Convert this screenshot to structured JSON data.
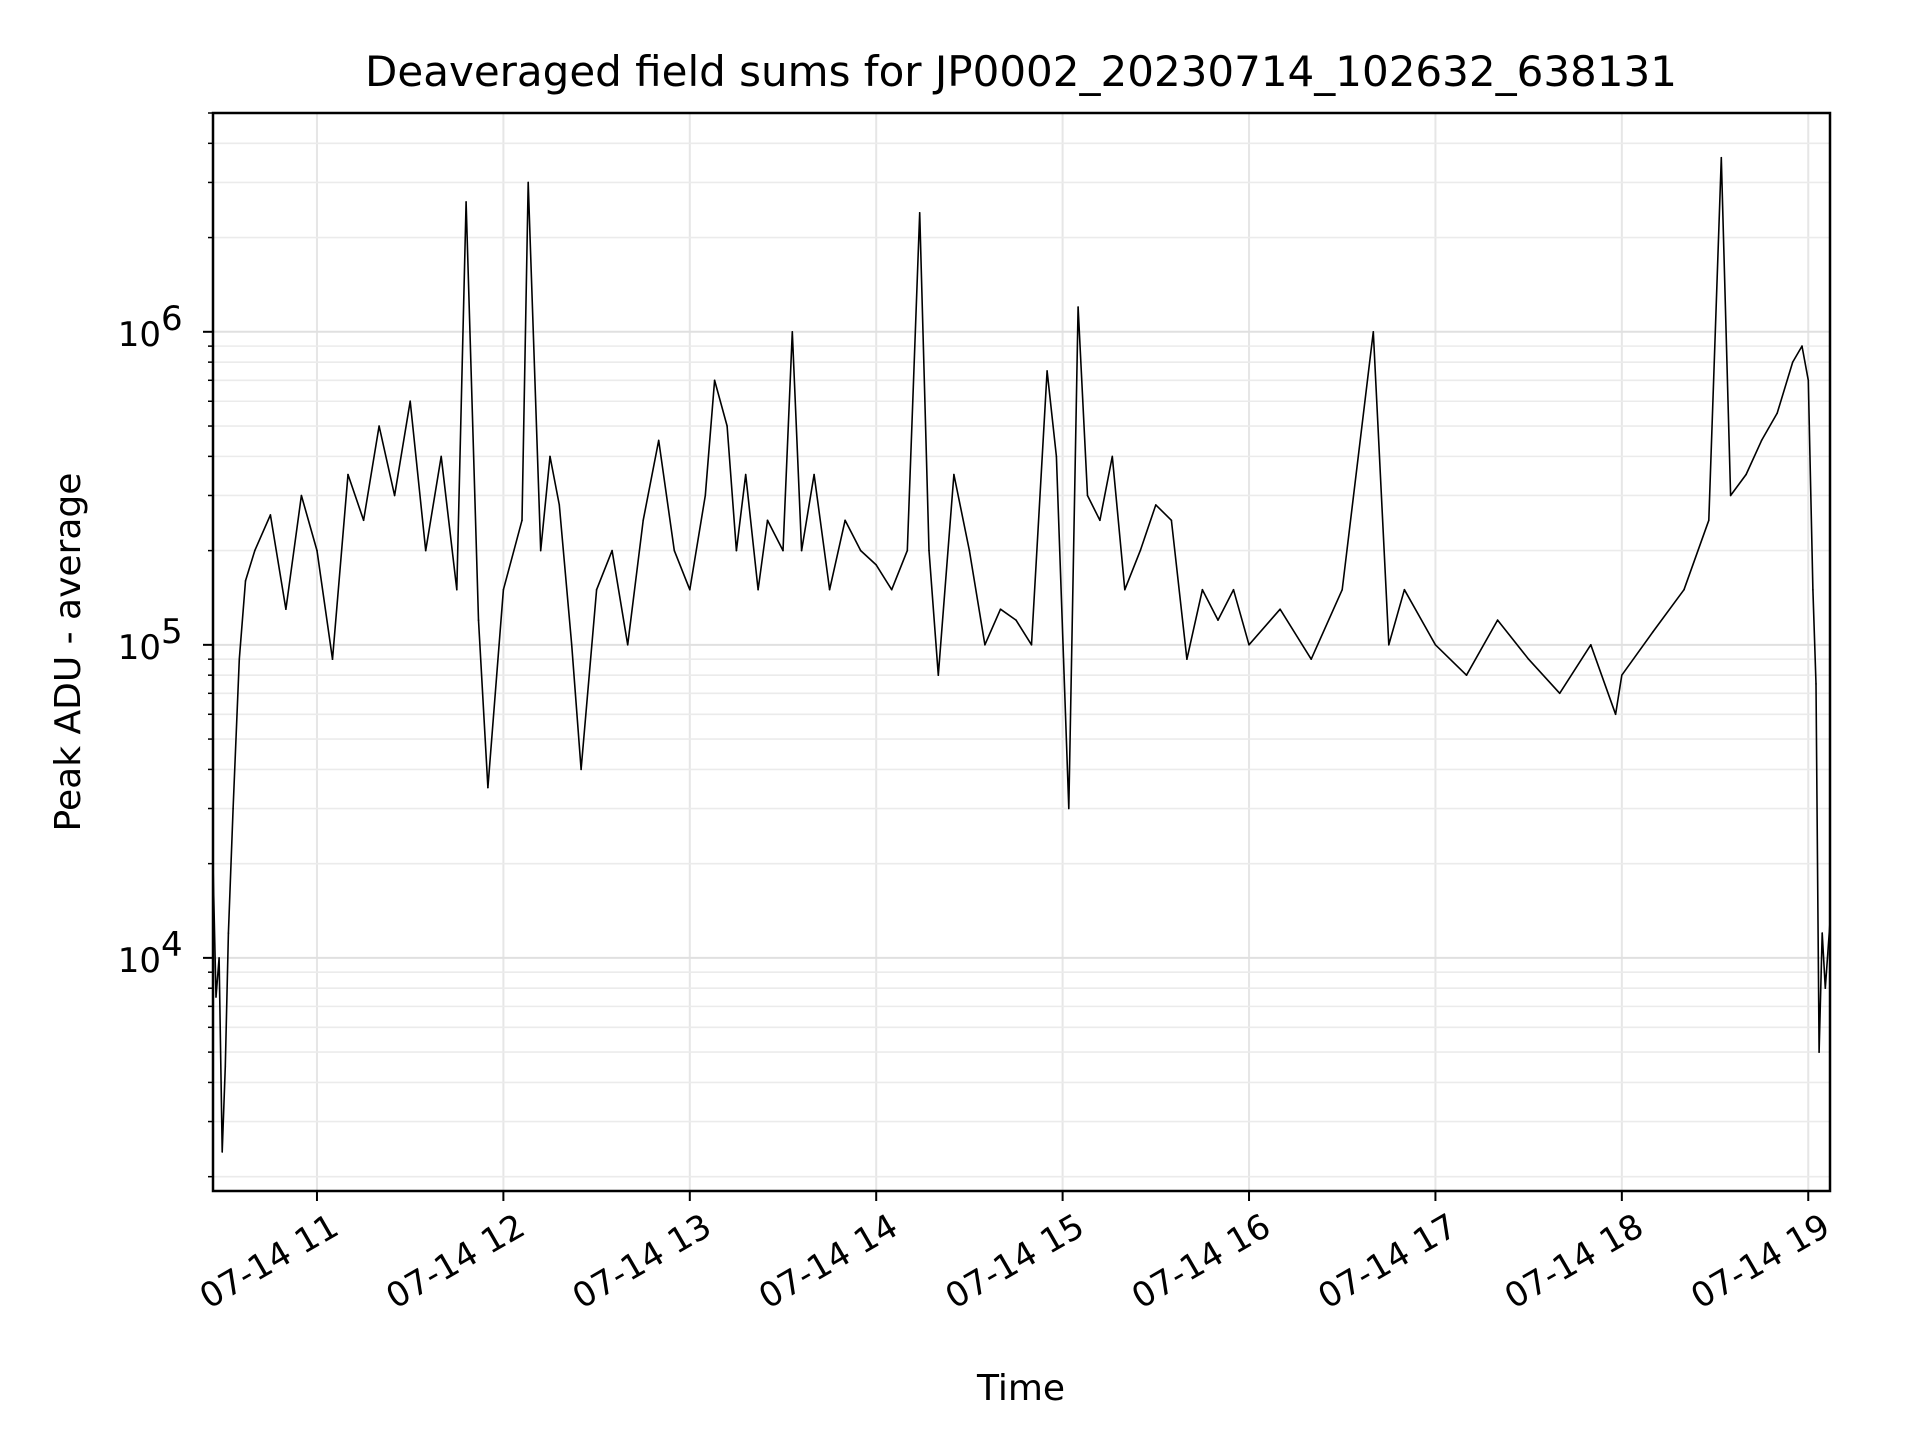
{
  "chart_data": {
    "type": "line",
    "title": "Deaveraged field sums for JP0002_20230714_102632_638131",
    "xlabel": "Time",
    "ylabel": "Peak ADU - average",
    "yscale": "log",
    "ylim": [
      1800,
      5000000
    ],
    "xlim": [
      "2023-07-14T10:26:32",
      "2023-07-14T19:07:00"
    ],
    "grid": true,
    "x_ticks": [
      {
        "t": "2023-07-14T11:00",
        "label": "07-14 11"
      },
      {
        "t": "2023-07-14T12:00",
        "label": "07-14 12"
      },
      {
        "t": "2023-07-14T13:00",
        "label": "07-14 13"
      },
      {
        "t": "2023-07-14T14:00",
        "label": "07-14 14"
      },
      {
        "t": "2023-07-14T15:00",
        "label": "07-14 15"
      },
      {
        "t": "2023-07-14T16:00",
        "label": "07-14 16"
      },
      {
        "t": "2023-07-14T17:00",
        "label": "07-14 17"
      },
      {
        "t": "2023-07-14T18:00",
        "label": "07-14 18"
      },
      {
        "t": "2023-07-14T19:00",
        "label": "07-14 19"
      }
    ],
    "y_ticks": [
      {
        "value": 10000,
        "base": "10",
        "exp": "4"
      },
      {
        "value": 100000,
        "base": "10",
        "exp": "5"
      },
      {
        "value": 1000000,
        "base": "10",
        "exp": "6"
      }
    ],
    "series": [
      {
        "color": "#000000",
        "points": [
          [
            "2023-07-14T10:26:32",
            20000
          ],
          [
            "2023-07-14T10:27:30",
            7500
          ],
          [
            "2023-07-14T10:28:30",
            10000
          ],
          [
            "2023-07-14T10:29:30",
            2400
          ],
          [
            "2023-07-14T10:30:30",
            4500
          ],
          [
            "2023-07-14T10:31:30",
            12000
          ],
          [
            "2023-07-14T10:33:00",
            30000
          ],
          [
            "2023-07-14T10:35:00",
            90000
          ],
          [
            "2023-07-14T10:37:00",
            160000
          ],
          [
            "2023-07-14T10:40:00",
            200000
          ],
          [
            "2023-07-14T10:45:00",
            260000
          ],
          [
            "2023-07-14T10:50:00",
            130000
          ],
          [
            "2023-07-14T10:55:00",
            300000
          ],
          [
            "2023-07-14T11:00:00",
            200000
          ],
          [
            "2023-07-14T11:05:00",
            90000
          ],
          [
            "2023-07-14T11:10:00",
            350000
          ],
          [
            "2023-07-14T11:15:00",
            250000
          ],
          [
            "2023-07-14T11:20:00",
            500000
          ],
          [
            "2023-07-14T11:25:00",
            300000
          ],
          [
            "2023-07-14T11:30:00",
            600000
          ],
          [
            "2023-07-14T11:35:00",
            200000
          ],
          [
            "2023-07-14T11:40:00",
            400000
          ],
          [
            "2023-07-14T11:45:00",
            150000
          ],
          [
            "2023-07-14T11:48:00",
            2600000
          ],
          [
            "2023-07-14T11:52:00",
            120000
          ],
          [
            "2023-07-14T11:55:00",
            35000
          ],
          [
            "2023-07-14T12:00:00",
            150000
          ],
          [
            "2023-07-14T12:06:00",
            250000
          ],
          [
            "2023-07-14T12:08:00",
            3000000
          ],
          [
            "2023-07-14T12:12:00",
            200000
          ],
          [
            "2023-07-14T12:15:00",
            400000
          ],
          [
            "2023-07-14T12:18:00",
            280000
          ],
          [
            "2023-07-14T12:22:00",
            100000
          ],
          [
            "2023-07-14T12:25:00",
            40000
          ],
          [
            "2023-07-14T12:30:00",
            150000
          ],
          [
            "2023-07-14T12:35:00",
            200000
          ],
          [
            "2023-07-14T12:40:00",
            100000
          ],
          [
            "2023-07-14T12:45:00",
            250000
          ],
          [
            "2023-07-14T12:50:00",
            450000
          ],
          [
            "2023-07-14T12:55:00",
            200000
          ],
          [
            "2023-07-14T13:00:00",
            150000
          ],
          [
            "2023-07-14T13:05:00",
            300000
          ],
          [
            "2023-07-14T13:08:00",
            700000
          ],
          [
            "2023-07-14T13:12:00",
            500000
          ],
          [
            "2023-07-14T13:15:00",
            200000
          ],
          [
            "2023-07-14T13:18:00",
            350000
          ],
          [
            "2023-07-14T13:22:00",
            150000
          ],
          [
            "2023-07-14T13:25:00",
            250000
          ],
          [
            "2023-07-14T13:30:00",
            200000
          ],
          [
            "2023-07-14T13:33:00",
            1000000
          ],
          [
            "2023-07-14T13:36:00",
            200000
          ],
          [
            "2023-07-14T13:40:00",
            350000
          ],
          [
            "2023-07-14T13:45:00",
            150000
          ],
          [
            "2023-07-14T13:50:00",
            250000
          ],
          [
            "2023-07-14T13:55:00",
            200000
          ],
          [
            "2023-07-14T14:00:00",
            180000
          ],
          [
            "2023-07-14T14:05:00",
            150000
          ],
          [
            "2023-07-14T14:10:00",
            200000
          ],
          [
            "2023-07-14T14:14:00",
            2400000
          ],
          [
            "2023-07-14T14:17:00",
            200000
          ],
          [
            "2023-07-14T14:20:00",
            80000
          ],
          [
            "2023-07-14T14:25:00",
            350000
          ],
          [
            "2023-07-14T14:30:00",
            200000
          ],
          [
            "2023-07-14T14:35:00",
            100000
          ],
          [
            "2023-07-14T14:40:00",
            130000
          ],
          [
            "2023-07-14T14:45:00",
            120000
          ],
          [
            "2023-07-14T14:50:00",
            100000
          ],
          [
            "2023-07-14T14:55:00",
            750000
          ],
          [
            "2023-07-14T14:58:00",
            400000
          ],
          [
            "2023-07-14T15:02:00",
            30000
          ],
          [
            "2023-07-14T15:05:00",
            1200000
          ],
          [
            "2023-07-14T15:08:00",
            300000
          ],
          [
            "2023-07-14T15:12:00",
            250000
          ],
          [
            "2023-07-14T15:16:00",
            400000
          ],
          [
            "2023-07-14T15:20:00",
            150000
          ],
          [
            "2023-07-14T15:25:00",
            200000
          ],
          [
            "2023-07-14T15:30:00",
            280000
          ],
          [
            "2023-07-14T15:35:00",
            250000
          ],
          [
            "2023-07-14T15:40:00",
            90000
          ],
          [
            "2023-07-14T15:45:00",
            150000
          ],
          [
            "2023-07-14T15:50:00",
            120000
          ],
          [
            "2023-07-14T15:55:00",
            150000
          ],
          [
            "2023-07-14T16:00:00",
            100000
          ],
          [
            "2023-07-14T16:10:00",
            130000
          ],
          [
            "2023-07-14T16:20:00",
            90000
          ],
          [
            "2023-07-14T16:30:00",
            150000
          ],
          [
            "2023-07-14T16:40:00",
            1000000
          ],
          [
            "2023-07-14T16:45:00",
            100000
          ],
          [
            "2023-07-14T16:50:00",
            150000
          ],
          [
            "2023-07-14T17:00:00",
            100000
          ],
          [
            "2023-07-14T17:10:00",
            80000
          ],
          [
            "2023-07-14T17:20:00",
            120000
          ],
          [
            "2023-07-14T17:30:00",
            90000
          ],
          [
            "2023-07-14T17:40:00",
            70000
          ],
          [
            "2023-07-14T17:50:00",
            100000
          ],
          [
            "2023-07-14T17:58:00",
            60000
          ],
          [
            "2023-07-14T18:00:00",
            80000
          ],
          [
            "2023-07-14T18:10:00",
            110000
          ],
          [
            "2023-07-14T18:20:00",
            150000
          ],
          [
            "2023-07-14T18:28:00",
            250000
          ],
          [
            "2023-07-14T18:32:00",
            3600000
          ],
          [
            "2023-07-14T18:35:00",
            300000
          ],
          [
            "2023-07-14T18:40:00",
            350000
          ],
          [
            "2023-07-14T18:45:00",
            450000
          ],
          [
            "2023-07-14T18:50:00",
            550000
          ],
          [
            "2023-07-14T18:55:00",
            800000
          ],
          [
            "2023-07-14T18:58:00",
            900000
          ],
          [
            "2023-07-14T19:00:00",
            700000
          ],
          [
            "2023-07-14T19:01:30",
            150000
          ],
          [
            "2023-07-14T19:02:30",
            75000
          ],
          [
            "2023-07-14T19:03:30",
            5000
          ],
          [
            "2023-07-14T19:04:30",
            12000
          ],
          [
            "2023-07-14T19:05:30",
            8000
          ],
          [
            "2023-07-14T19:07:00",
            13000
          ]
        ]
      }
    ]
  }
}
